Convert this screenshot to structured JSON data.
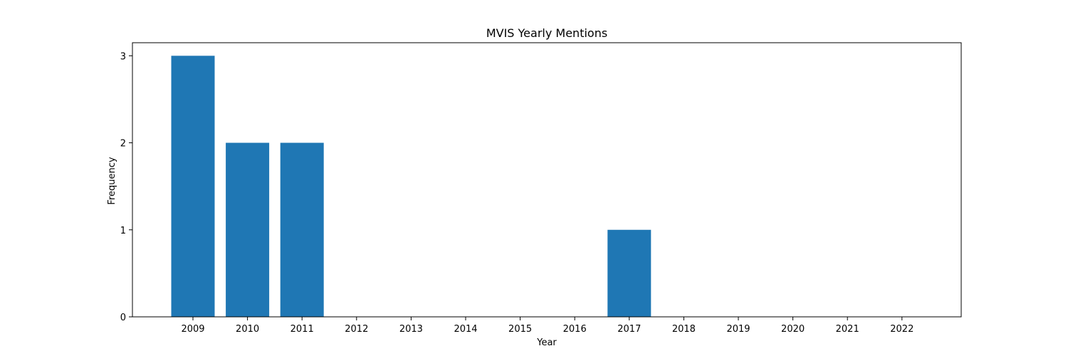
{
  "chart_data": {
    "type": "bar",
    "title": "MVIS Yearly Mentions",
    "xlabel": "Year",
    "ylabel": "Frequency",
    "categories": [
      "2009",
      "2010",
      "2011",
      "2012",
      "2013",
      "2014",
      "2015",
      "2016",
      "2017",
      "2018",
      "2019",
      "2020",
      "2021",
      "2022"
    ],
    "values": [
      3,
      2,
      2,
      0,
      0,
      0,
      0,
      0,
      1,
      0,
      0,
      0,
      0,
      0
    ],
    "ylim": [
      0,
      3.15
    ],
    "yticks": [
      "0",
      "1",
      "2",
      "3"
    ],
    "bar_color": "#1f77b4",
    "grid": false,
    "legend": false
  }
}
